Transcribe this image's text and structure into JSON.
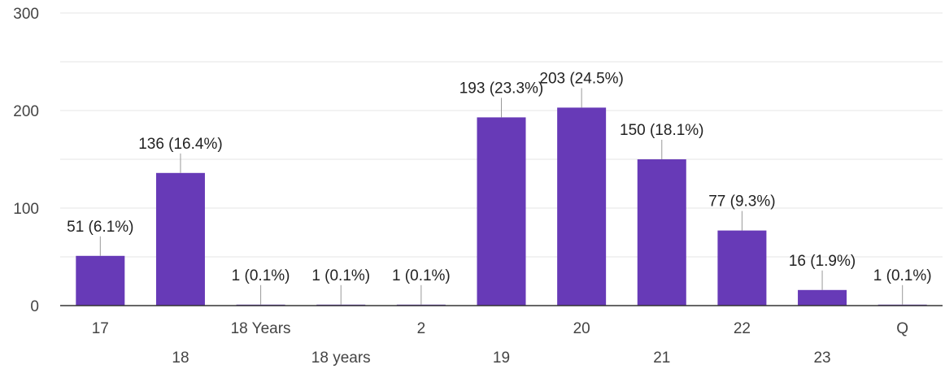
{
  "chart_data": {
    "type": "bar",
    "categories": [
      "17",
      "18",
      "18 Years",
      "18 years",
      "2",
      "19",
      "20",
      "21",
      "22",
      "23",
      "Q"
    ],
    "values": [
      51,
      136,
      1,
      1,
      1,
      193,
      203,
      150,
      77,
      16,
      1
    ],
    "data_labels": [
      "51 (6.1%)",
      "136 (16.4%)",
      "1 (0.1%)",
      "1 (0.1%)",
      "1 (0.1%)",
      "193 (23.3%)",
      "203 (24.5%)",
      "150 (18.1%)",
      "77 (9.3%)",
      "16 (1.9%)",
      "1 (0.1%)"
    ],
    "yticks": [
      0,
      100,
      200,
      300
    ],
    "ylim": [
      0,
      300
    ],
    "title": "",
    "xlabel": "",
    "ylabel": "",
    "grid": true,
    "bar_color": "#673ab7",
    "grid_color": "#e6e6e6",
    "axis_color": "#333333",
    "leader_color": "#999999"
  }
}
